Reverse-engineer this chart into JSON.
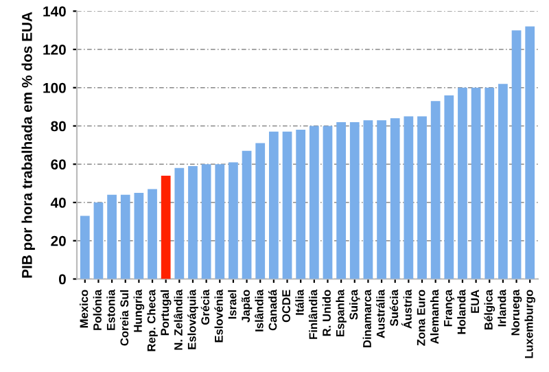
{
  "chart_data": {
    "type": "bar",
    "ylabel": "PIB por hora trabalhada em % dos EUA",
    "categories": [
      "Mexico",
      "Polónia",
      "Estonia",
      "Coreia Sul",
      "Hungria",
      "Rep. Checa",
      "Portugal",
      "N. Zelândia",
      "Eslováquia",
      "Grécia",
      "Eslovénia",
      "Israel",
      "Japão",
      "Islândia",
      "Canadá",
      "OCDE",
      "Itália",
      "Finlândia",
      "R. Unido",
      "Espanha",
      "Suiça",
      "Dinamarca",
      "Austrália",
      "Suécia",
      "Áustria",
      "Zona Euro",
      "Alemanha",
      "França",
      "Holanda",
      "EUA",
      "Bélgica",
      "Irlanda",
      "Noruega",
      "Luxemburgo"
    ],
    "values": [
      33,
      40,
      44,
      44,
      45,
      47,
      54,
      58,
      59,
      60,
      60,
      61,
      67,
      71,
      77,
      77,
      78,
      80,
      80,
      82,
      82,
      83,
      83,
      84,
      85,
      85,
      93,
      96,
      100,
      100,
      100,
      102,
      130,
      132
    ],
    "colors": [
      "#7aaeea",
      "#7aaeea",
      "#7aaeea",
      "#7aaeea",
      "#7aaeea",
      "#7aaeea",
      "#ff2200",
      "#7aaeea",
      "#7aaeea",
      "#7aaeea",
      "#7aaeea",
      "#7aaeea",
      "#7aaeea",
      "#7aaeea",
      "#7aaeea",
      "#7aaeea",
      "#7aaeea",
      "#7aaeea",
      "#7aaeea",
      "#7aaeea",
      "#7aaeea",
      "#7aaeea",
      "#7aaeea",
      "#7aaeea",
      "#7aaeea",
      "#7aaeea",
      "#7aaeea",
      "#7aaeea",
      "#7aaeea",
      "#7aaeea",
      "#7aaeea",
      "#7aaeea",
      "#7aaeea",
      "#7aaeea"
    ],
    "ylim": [
      0,
      140
    ],
    "yticks": [
      0,
      20,
      40,
      60,
      80,
      100,
      120,
      140
    ],
    "grid": "y"
  }
}
